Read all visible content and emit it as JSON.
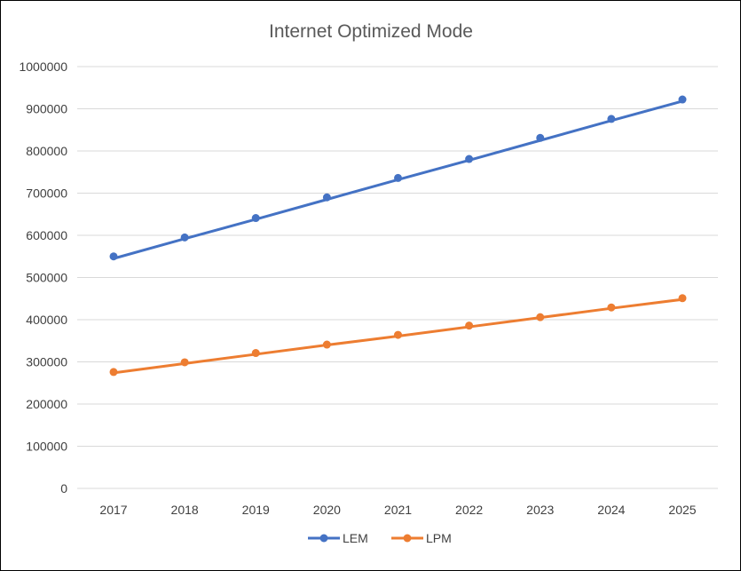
{
  "chart_data": {
    "type": "line",
    "title": "Internet Optimized Mode",
    "xlabel": "",
    "ylabel": "",
    "categories": [
      "2017",
      "2018",
      "2019",
      "2020",
      "2021",
      "2022",
      "2023",
      "2024",
      "2025"
    ],
    "y_ticks": [
      "0",
      "100000",
      "200000",
      "300000",
      "400000",
      "500000",
      "600000",
      "700000",
      "800000",
      "900000",
      "1000000"
    ],
    "ylim": [
      0,
      1000000
    ],
    "grid": true,
    "legend_position": "bottom",
    "series": [
      {
        "name": "LEM",
        "color": "#4472C4",
        "values": [
          550000,
          595000,
          641000,
          690000,
          736000,
          781000,
          831000,
          876000,
          922000
        ],
        "trend": [
          545000,
          592000,
          638000,
          685000,
          732000,
          778000,
          825000,
          872000,
          918000
        ]
      },
      {
        "name": "LPM",
        "color": "#ED7D31",
        "values": [
          276000,
          299000,
          321000,
          341000,
          364000,
          386000,
          406000,
          429000,
          451000
        ],
        "trend": [
          274000,
          296000,
          318000,
          340000,
          361000,
          383000,
          405000,
          427000,
          448000
        ]
      }
    ]
  }
}
